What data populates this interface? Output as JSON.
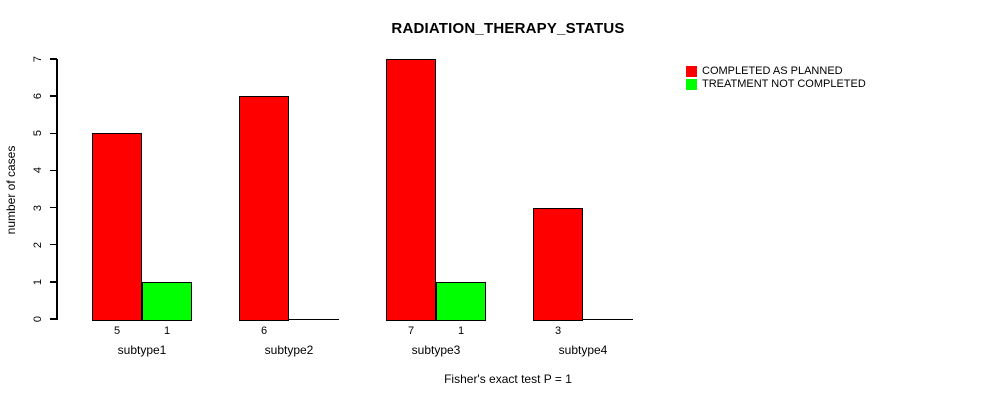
{
  "title": "RADIATION_THERAPY_STATUS",
  "y_axis_label": "number of cases",
  "footer_caption": "Fisher's exact test P = 1",
  "legend": {
    "items": [
      {
        "label": "COMPLETED AS PLANNED",
        "color": "#FF0000"
      },
      {
        "label": "TREATMENT NOT COMPLETED",
        "color": "#00FF00"
      }
    ]
  },
  "chart_data": {
    "type": "bar",
    "grouped": true,
    "title": "RADIATION_THERAPY_STATUS",
    "xlabel": "",
    "ylabel": "number of cases",
    "categories": [
      "subtype1",
      "subtype2",
      "subtype3",
      "subtype4"
    ],
    "series": [
      {
        "name": "COMPLETED AS PLANNED",
        "color": "#FF0000",
        "values": [
          5,
          6,
          7,
          3
        ]
      },
      {
        "name": "TREATMENT NOT COMPLETED",
        "color": "#00FF00",
        "values": [
          1,
          0,
          1,
          0
        ]
      }
    ],
    "bar_value_labels": [
      [
        "5",
        "1"
      ],
      [
        "6",
        ""
      ],
      [
        "7",
        "1"
      ],
      [
        "3",
        ""
      ]
    ],
    "ylim": [
      0,
      7
    ],
    "yticks": [
      0,
      1,
      2,
      3,
      4,
      5,
      6,
      7
    ],
    "annotation": "Fisher's exact test P = 1",
    "legend_position": "top-right",
    "grid": false,
    "background": "#FFFFFF",
    "axis_color": "#000000"
  }
}
